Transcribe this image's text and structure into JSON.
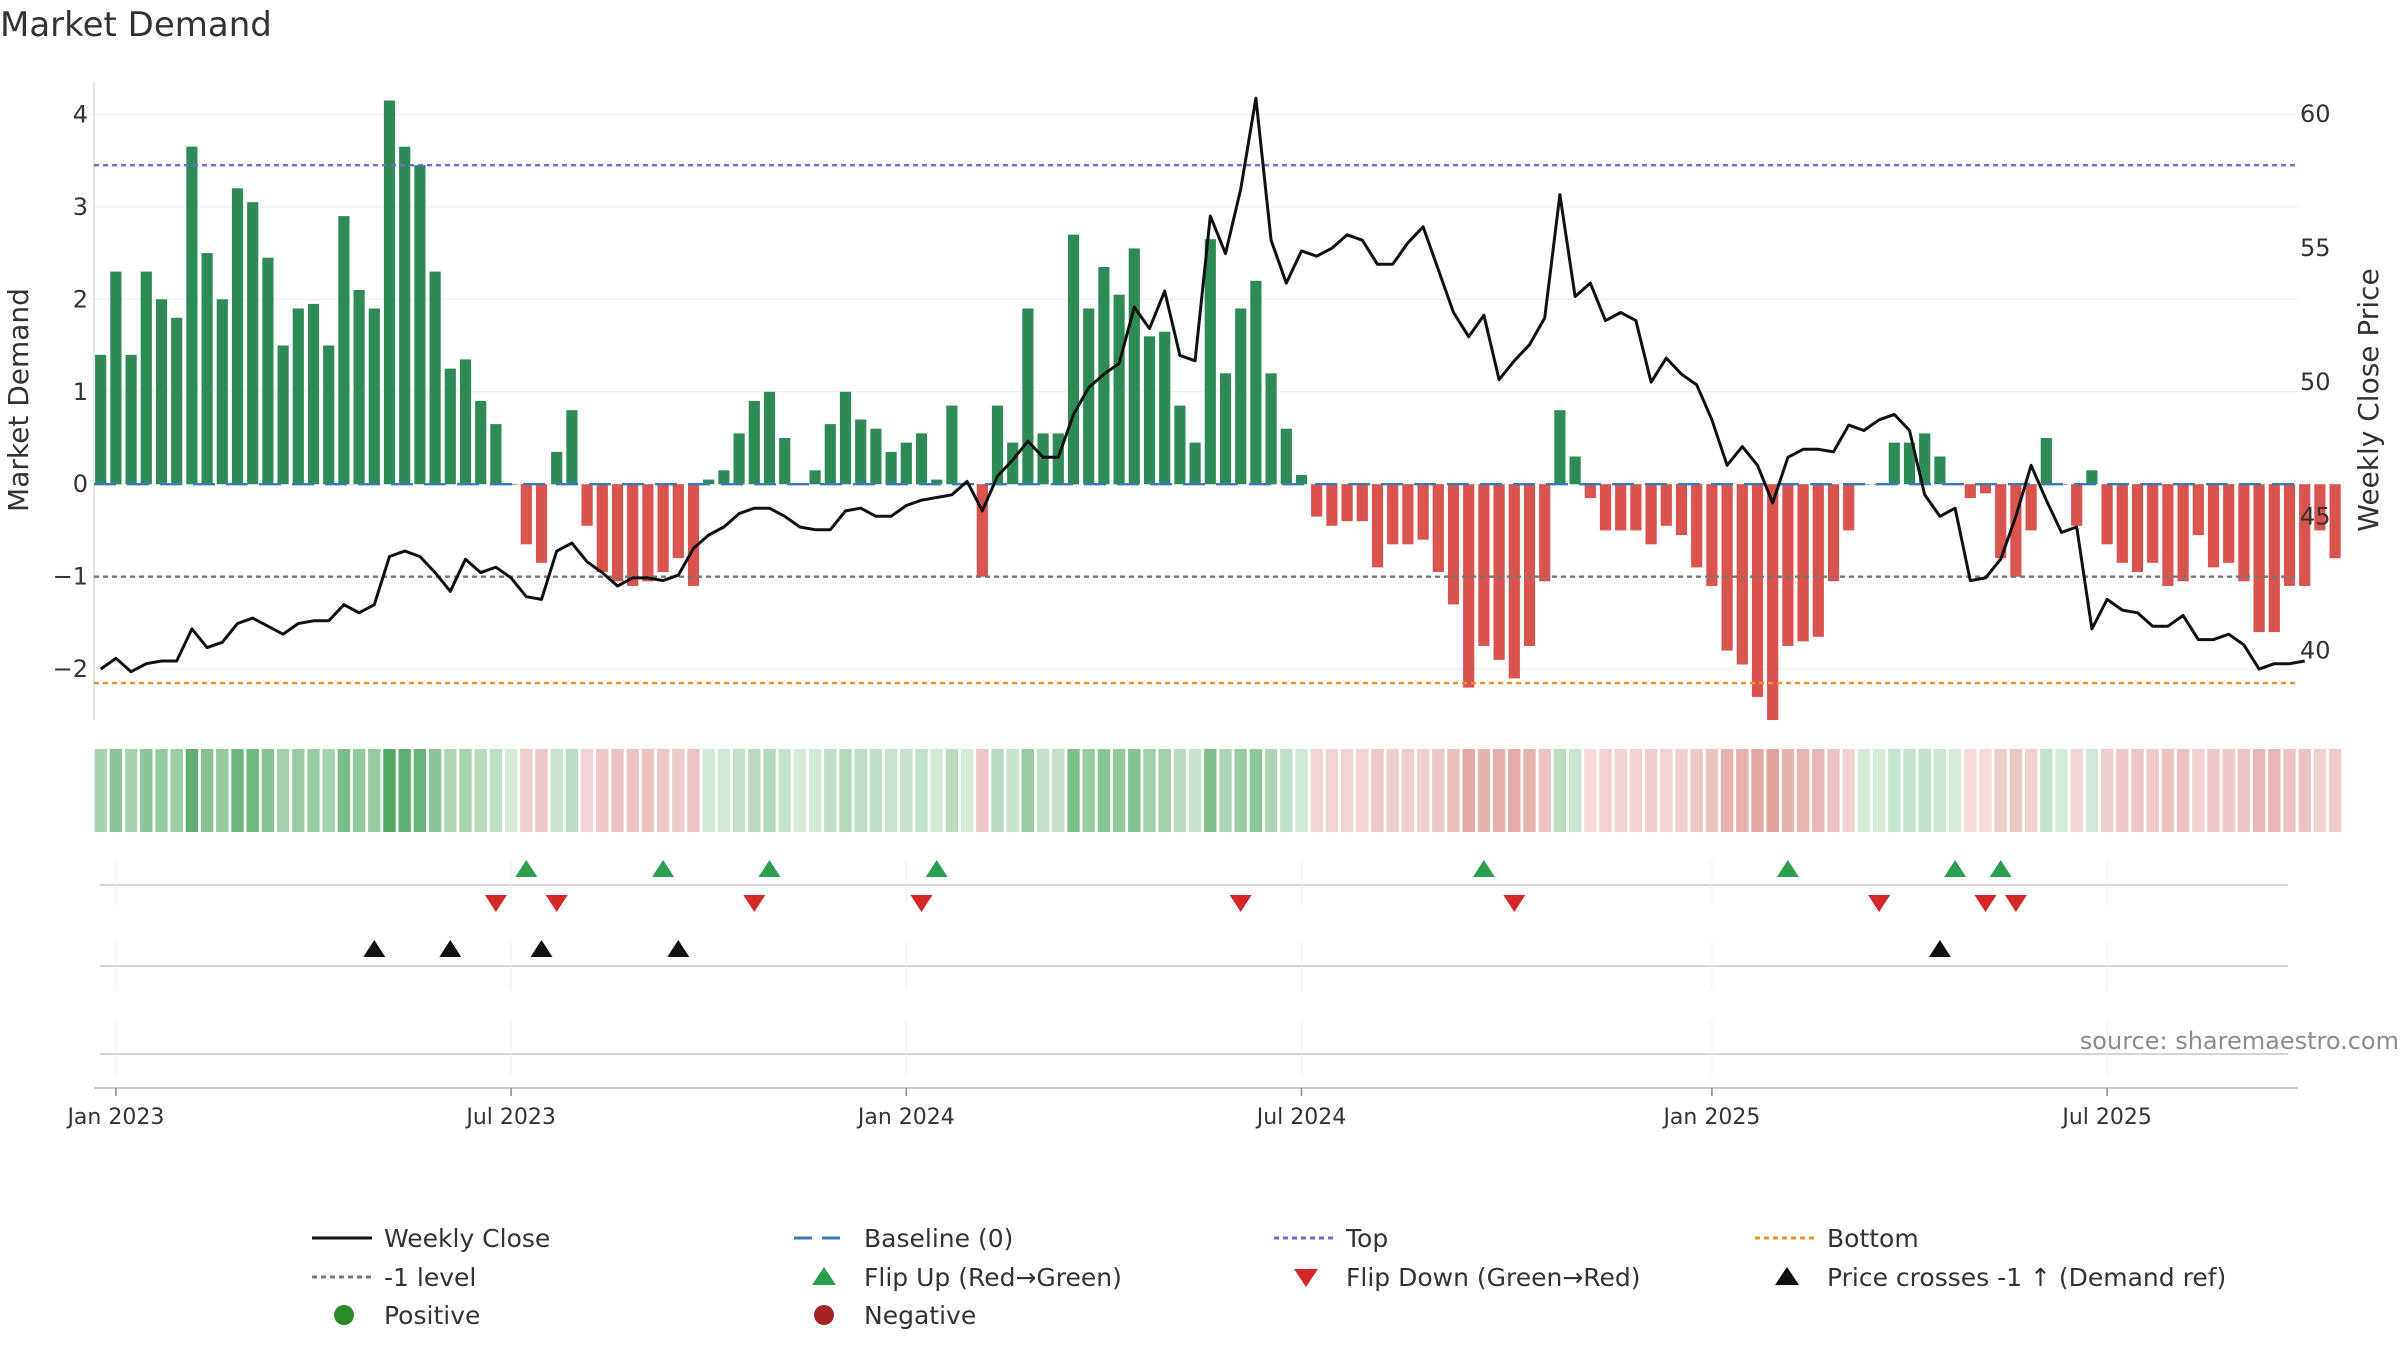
{
  "chart_data": {
    "type": "bar+line",
    "title": "Market Demand",
    "ylabel_left": "Market Demand",
    "ylabel_right": "Weekly Close Price",
    "ylim_left": [
      -2.55,
      4.35
    ],
    "ylim_right": [
      37.4,
      61.2
    ],
    "yticks_left": [
      4,
      3,
      2,
      1,
      0,
      -1,
      -2
    ],
    "ytick_labels_left": [
      "4",
      "3",
      "2",
      "1",
      "0",
      "−1",
      "−2"
    ],
    "yticks_right": [
      60,
      55,
      50,
      45,
      40
    ],
    "x_tick_labels": [
      "Jan 2023",
      "Jul 2023",
      "Jan 2024",
      "Jul 2024",
      "Jan 2025",
      "Jul 2025"
    ],
    "x_tick_weeks": [
      1,
      27,
      53,
      79,
      106,
      132
    ],
    "n_weeks": 144,
    "demand": [
      1.4,
      2.3,
      1.4,
      2.3,
      2.0,
      1.8,
      3.65,
      2.5,
      2.0,
      3.2,
      3.05,
      2.45,
      1.5,
      1.9,
      1.95,
      1.5,
      2.9,
      2.1,
      1.9,
      4.15,
      3.65,
      3.45,
      2.3,
      1.25,
      1.35,
      0.9,
      0.65,
      0.0,
      -0.65,
      -0.85,
      0.35,
      0.8,
      -0.45,
      -0.95,
      -1.05,
      -1.1,
      -1.05,
      -0.95,
      -0.8,
      -1.1,
      0.05,
      0.15,
      0.55,
      0.9,
      1.0,
      0.5,
      0.0,
      0.15,
      0.65,
      1.0,
      0.7,
      0.6,
      0.35,
      0.45,
      0.55,
      0.05,
      0.85,
      0.0,
      -1.0,
      0.85,
      0.45,
      1.9,
      0.55,
      0.55,
      2.7,
      1.9,
      2.35,
      2.05,
      2.55,
      1.6,
      1.65,
      0.85,
      0.45,
      2.65,
      1.2,
      1.9,
      2.2,
      1.2,
      0.6,
      0.1,
      -0.35,
      -0.45,
      -0.4,
      -0.4,
      -0.9,
      -0.65,
      -0.65,
      -0.6,
      -0.95,
      -1.3,
      -2.2,
      -1.75,
      -1.9,
      -2.1,
      -1.75,
      -1.05,
      0.8,
      0.3,
      -0.15,
      -0.5,
      -0.5,
      -0.5,
      -0.65,
      -0.45,
      -0.55,
      -0.9,
      -1.1,
      -1.8,
      -1.95,
      -2.3,
      -2.55,
      -1.75,
      -1.7,
      -1.65,
      -1.05,
      -0.5,
      0.0,
      0.0,
      0.45,
      0.45,
      0.55,
      0.3,
      0.0,
      -0.15,
      -0.1,
      -0.8,
      -1.0,
      -0.5,
      0.5,
      0.0,
      -0.45,
      0.15,
      -0.65,
      -0.85,
      -0.95,
      -0.85,
      -1.1,
      -1.05,
      -0.55,
      -0.9,
      -0.85,
      -1.05,
      -1.6,
      -1.6,
      -1.1,
      -1.1,
      -0.5,
      -0.8
    ],
    "close": [
      39.3,
      39.7,
      39.2,
      39.5,
      39.6,
      39.6,
      40.8,
      40.1,
      40.3,
      41.0,
      41.2,
      40.9,
      40.6,
      41.0,
      41.1,
      41.1,
      41.7,
      41.4,
      41.7,
      43.5,
      43.7,
      43.5,
      42.9,
      42.2,
      43.4,
      42.9,
      43.1,
      42.7,
      42.0,
      41.9,
      43.7,
      44.0,
      43.3,
      42.9,
      42.4,
      42.7,
      42.7,
      42.6,
      42.8,
      43.8,
      44.3,
      44.6,
      45.1,
      45.3,
      45.3,
      45.0,
      44.6,
      44.5,
      44.5,
      45.2,
      45.3,
      45.0,
      45.0,
      45.4,
      45.6,
      45.7,
      45.8,
      46.3,
      45.2,
      46.5,
      47.1,
      47.8,
      47.2,
      47.2,
      48.8,
      49.8,
      50.3,
      50.7,
      52.8,
      52.0,
      53.4,
      51.0,
      50.8,
      56.2,
      54.8,
      57.2,
      60.6,
      55.3,
      53.7,
      54.9,
      54.7,
      55.0,
      55.5,
      55.3,
      54.4,
      54.4,
      55.2,
      55.8,
      54.2,
      52.6,
      51.7,
      52.5,
      50.1,
      50.8,
      51.4,
      52.4,
      57.0,
      53.2,
      53.7,
      52.3,
      52.6,
      52.3,
      50.0,
      50.9,
      50.3,
      49.9,
      48.6,
      46.9,
      47.6,
      46.9,
      45.5,
      47.2,
      47.5,
      47.5,
      47.4,
      48.4,
      48.2,
      48.6,
      48.8,
      48.2,
      45.8,
      45.0,
      45.3,
      42.6,
      42.7,
      43.4,
      45.0,
      46.9,
      45.6,
      44.4,
      44.6,
      40.8,
      41.9,
      41.5,
      41.4,
      40.9,
      40.9,
      41.3,
      40.4,
      40.4,
      40.6,
      40.2,
      39.3,
      39.5,
      39.5,
      39.6
    ],
    "flip_up_weeks": [
      28,
      37,
      44,
      55,
      91,
      111,
      122,
      125
    ],
    "flip_down_weeks": [
      26,
      30,
      43,
      54,
      75,
      93,
      117,
      124,
      126
    ],
    "price_cross_weeks": [
      18,
      23,
      29,
      38,
      121
    ],
    "reference_lines": [
      {
        "name": "Top",
        "value": 3.45,
        "color": "#6e6ec8"
      },
      {
        "name": "-1 level",
        "value": -1.0,
        "color": "#777777"
      },
      {
        "name": "Bottom",
        "value": -2.15,
        "color": "#e8932d"
      },
      {
        "name": "Baseline (0)",
        "value": 0.0,
        "color": "#3a7ab8"
      }
    ],
    "legend": [
      {
        "label": "Weekly Close",
        "kind": "line",
        "color": "#111111"
      },
      {
        "label": "Baseline (0)",
        "kind": "dash",
        "color": "#3a7ab8"
      },
      {
        "label": "Top",
        "kind": "dot",
        "color": "#6e6ec8"
      },
      {
        "label": "Bottom",
        "kind": "dot",
        "color": "#e8932d"
      },
      {
        "label": "-1 level",
        "kind": "dot",
        "color": "#777777"
      },
      {
        "label": "Flip Up (Red→Green)",
        "kind": "tri-up",
        "color": "#2e9e4f"
      },
      {
        "label": "Flip Down (Green→Red)",
        "kind": "tri-down",
        "color": "#d62728"
      },
      {
        "label": "Price crosses -1 ↑ (Demand ref)",
        "kind": "tri-up",
        "color": "#111111"
      },
      {
        "label": "Positive",
        "kind": "circle",
        "color": "#2a8a2a"
      },
      {
        "label": "Negative",
        "kind": "circle",
        "color": "#a82424"
      }
    ],
    "source": "source: sharemaestro.com"
  },
  "colors": {
    "positive": "#2e8b57",
    "negative": "#d9534f",
    "line": "#111111",
    "grid": "#ececec",
    "axis": "#c8c8c8"
  }
}
